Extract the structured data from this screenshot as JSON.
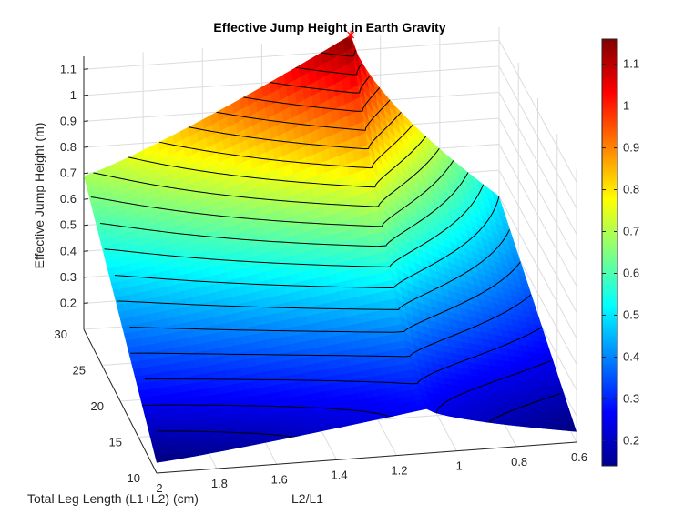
{
  "chart_data": {
    "type": "surface",
    "title": "Effective Jump Height in Earth Gravity",
    "xlabel": "L2/L1",
    "ylabel": "Total Leg Length (L1+L2) (cm)",
    "zlabel": "Effective Jump Height (m)",
    "x_ticks": [
      "2",
      "1.8",
      "1.6",
      "1.4",
      "1.2",
      "1",
      "0.8",
      "0.6"
    ],
    "y_ticks": [
      "10",
      "15",
      "20",
      "25",
      "30"
    ],
    "z_ticks": [
      "0.2",
      "0.3",
      "0.4",
      "0.5",
      "0.6",
      "0.7",
      "0.8",
      "0.9",
      "1",
      "1.1"
    ],
    "xlim": [
      0.6,
      2.0
    ],
    "ylim": [
      10,
      30
    ],
    "zlim": [
      0.1,
      1.15
    ],
    "grid": true,
    "colormap": "jet",
    "colorbar": {
      "ticks": [
        "0.2",
        "0.3",
        "0.4",
        "0.5",
        "0.6",
        "0.7",
        "0.8",
        "0.9",
        "1",
        "1.1"
      ],
      "range": [
        0.14,
        1.16
      ]
    },
    "peak_marker": {
      "symbol": "*",
      "color": "#ff0000",
      "x": 1.1,
      "y": 30,
      "z": 1.16
    },
    "contour_levels": [
      0.2,
      0.25,
      0.3,
      0.35,
      0.4,
      0.45,
      0.5,
      0.55,
      0.6,
      0.65,
      0.7,
      0.75,
      0.8,
      0.85,
      0.9,
      0.95,
      1.0,
      1.05,
      1.1
    ],
    "surface_samples": [
      {
        "x": 2.0,
        "y": 10,
        "z": 0.14
      },
      {
        "x": 2.0,
        "y": 30,
        "z": 0.69
      },
      {
        "x": 1.1,
        "y": 30,
        "z": 1.16
      },
      {
        "x": 1.1,
        "y": 10,
        "z": 0.27
      },
      {
        "x": 0.6,
        "y": 30,
        "z": 0.5
      },
      {
        "x": 0.6,
        "y": 10,
        "z": 0.14
      }
    ]
  }
}
